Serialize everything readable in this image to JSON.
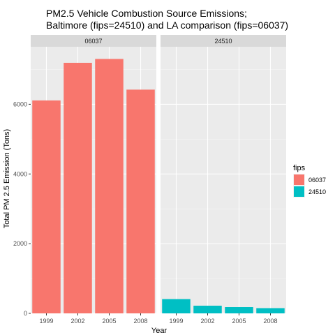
{
  "chart_data": {
    "type": "bar",
    "title_lines": [
      "PM2.5 Vehicle Combustion Source Emissions;",
      "Baltimore (fips=24510) and LA comparison (fips=06037)"
    ],
    "xlabel": "Year",
    "ylabel": "Total PM 2.5 Emission (Tons)",
    "categories": [
      "1999",
      "2002",
      "2005",
      "2008"
    ],
    "ylim": [
      0,
      7650
    ],
    "yticks": [
      0,
      2000,
      4000,
      6000
    ],
    "grid": true,
    "legend": {
      "title": "fips",
      "position": "right",
      "entries": [
        {
          "label": "06037",
          "color": "#F8766D"
        },
        {
          "label": "24510",
          "color": "#00BFC4"
        }
      ]
    },
    "panels": [
      {
        "strip": "06037",
        "color": "#F8766D",
        "values": [
          6110,
          7190,
          7300,
          6420
        ]
      },
      {
        "strip": "24510",
        "color": "#00BFC4",
        "values": [
          410,
          220,
          180,
          150
        ]
      }
    ]
  }
}
